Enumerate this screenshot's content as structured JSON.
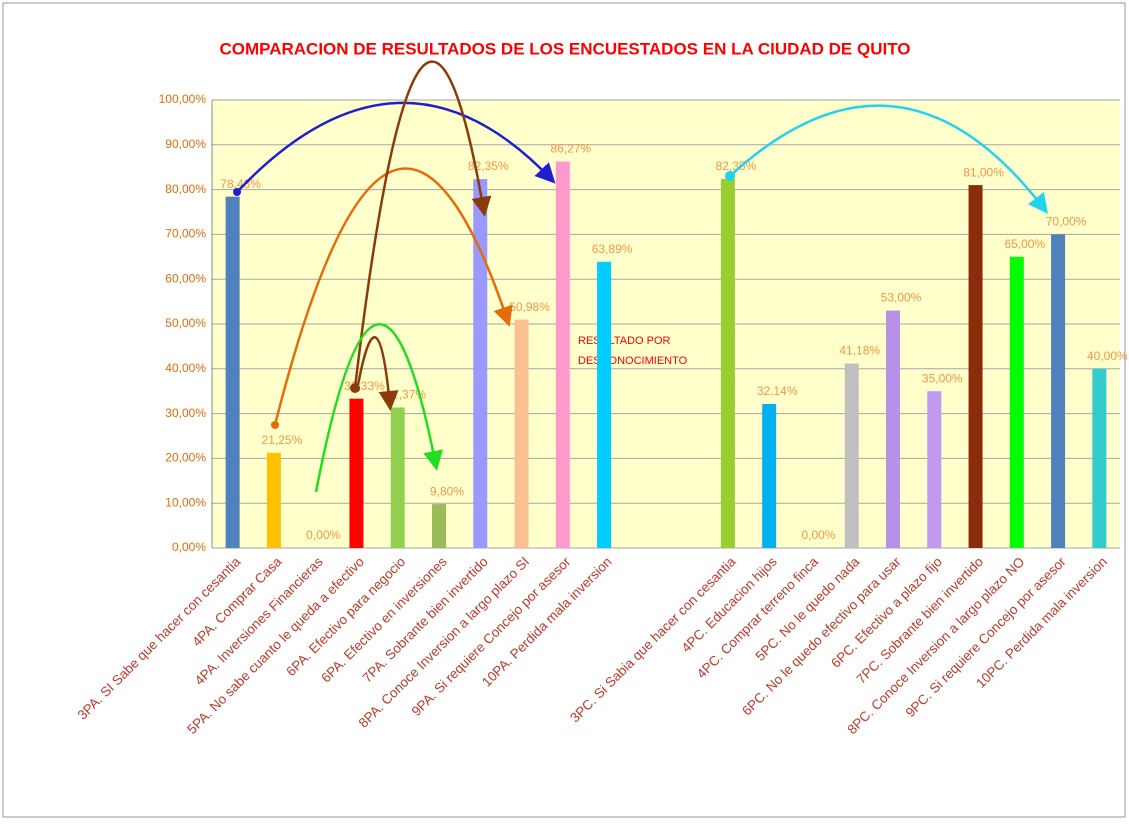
{
  "chart_data": {
    "type": "bar",
    "title": "COMPARACION DE RESULTADOS DE LOS ENCUESTADOS EN LA CIUDAD DE QUITO",
    "annotation": [
      "RESULTADO POR",
      "DESCONOCIMIENTO"
    ],
    "categories": [
      "3PA. SI Sabe que hacer con cesantia",
      "4PA. Comprar Casa",
      "4PA. Inversiones Financieras",
      "5PA. No sabe cuanto le queda a efectivo",
      "6PA. Efectivo para negocio",
      "6PA. Efectivo en inversiones",
      "7PA. Sobrante bien invertido",
      "8PA. Conoce Inversion a largo plazo SI",
      "9PA. Si requiere Concejo por asesor",
      "10PA. Perdida mala inversion",
      null,
      null,
      "3PC. Si Sabia que hacer con cesantia",
      "4PC. Educacion hijos",
      "4PC. Comprar terreno finca",
      "5PC. No le quedo nada",
      "6PC. No le quedo efectivo para usar",
      "6PC. Efectivo a plazo fijo",
      "7PC. Sobrante bien invertido",
      "8PC. Conoce Inversion a largo plazo NO",
      "9PC. Si requiere Concejo por asesor",
      "10PC. Perdida mala inversion"
    ],
    "values": [
      78.43,
      21.25,
      0,
      33.33,
      31.37,
      9.8,
      82.35,
      50.98,
      86.27,
      63.89,
      null,
      null,
      82.35,
      32.14,
      0,
      41.18,
      53,
      35,
      81,
      65,
      70,
      40
    ],
    "value_labels": [
      "78,43%",
      "21,25%",
      "0,00%",
      "33,33%",
      "31,37%",
      "9,80%",
      "82,35%",
      "50,98%",
      "86,27%",
      "63,89%",
      null,
      null,
      "82,35%",
      "32,14%",
      "0,00%",
      "41,18%",
      "53,00%",
      "35,00%",
      "81,00%",
      "65,00%",
      "70,00%",
      "40,00%"
    ],
    "colors": [
      "#4f81bd",
      "#ffc000",
      "#9bbb59",
      "#ff0000",
      "#92d050",
      "#9bbb59",
      "#9999ff",
      "#fac090",
      "#ff99cc",
      "#00ccff",
      null,
      null,
      "#9acd32",
      "#00b0f0",
      "#9bbb59",
      "#bfbfbf",
      "#b790e8",
      "#c299f0",
      "#8b2d0b",
      "#00ff00",
      "#4f81bd",
      "#33cccc"
    ],
    "ylim": [
      0,
      100
    ],
    "yticks": [
      {
        "value": 0,
        "label": "0,00%"
      },
      {
        "value": 10,
        "label": "10,00%"
      },
      {
        "value": 20,
        "label": "20,00%"
      },
      {
        "value": 30,
        "label": "30,00%"
      },
      {
        "value": 40,
        "label": "40,00%"
      },
      {
        "value": 50,
        "label": "50,00%"
      },
      {
        "value": 60,
        "label": "60,00%"
      },
      {
        "value": 70,
        "label": "70,00%"
      },
      {
        "value": 80,
        "label": "80,00%"
      },
      {
        "value": 90,
        "label": "90,00%"
      },
      {
        "value": 100,
        "label": "100,00%"
      }
    ],
    "grid": true
  }
}
